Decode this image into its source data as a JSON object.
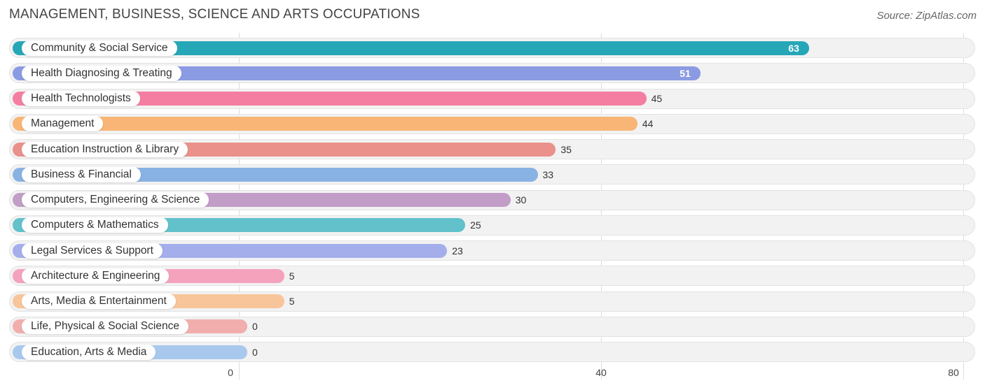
{
  "header": {
    "title": "MANAGEMENT, BUSINESS, SCIENCE AND ARTS OCCUPATIONS",
    "source": "Source: ZipAtlas.com"
  },
  "chart_data": {
    "type": "bar",
    "orientation": "horizontal",
    "title": "MANAGEMENT, BUSINESS, SCIENCE AND ARTS OCCUPATIONS",
    "xlim": [
      0,
      80
    ],
    "x_ticks": [
      "0",
      "40",
      "80"
    ],
    "grid": true,
    "categories": [
      "Community & Social Service",
      "Health Diagnosing & Treating",
      "Health Technologists",
      "Management",
      "Education Instruction & Library",
      "Business & Financial",
      "Computers, Engineering & Science",
      "Computers & Mathematics",
      "Legal Services & Support",
      "Architecture & Engineering",
      "Arts, Media & Entertainment",
      "Life, Physical & Social Science",
      "Education, Arts & Media"
    ],
    "values": [
      63,
      51,
      45,
      44,
      35,
      33,
      30,
      25,
      23,
      5,
      5,
      0,
      0
    ],
    "value_labels": [
      "63",
      "51",
      "45",
      "44",
      "35",
      "33",
      "30",
      "25",
      "23",
      "5",
      "5",
      "0",
      "0"
    ],
    "colors": [
      "#25a7b8",
      "#8b9be3",
      "#f47ea1",
      "#f8b575",
      "#e9918a",
      "#88b2e3",
      "#c19dc7",
      "#62c1cb",
      "#a4aeeb",
      "#f5a2bd",
      "#f8c59a",
      "#f1aeac",
      "#a9c8ee"
    ]
  }
}
